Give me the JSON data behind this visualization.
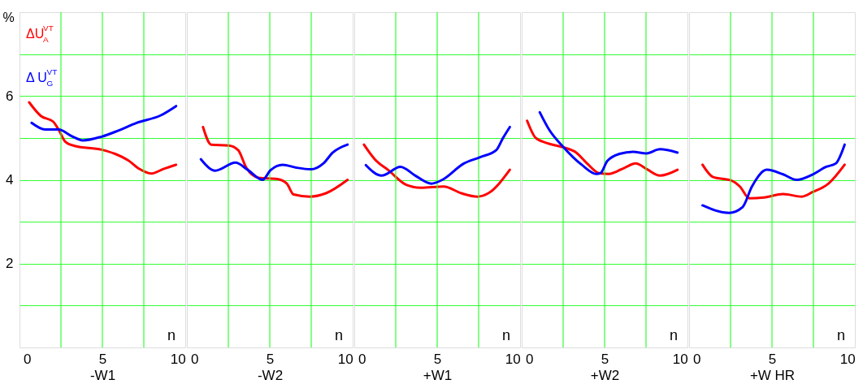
{
  "chart_data": [
    {
      "type": "line",
      "xlabel": "-W1",
      "ylabel": "%",
      "legend": "top left",
      "grid": "y",
      "annotations": [
        "n"
      ],
      "ref_lines": [
        {
          "axis": "x",
          "value": 2.25,
          "color": "#33ff33"
        },
        {
          "axis": "x",
          "value": 5,
          "color": "#33ff33"
        },
        {
          "axis": "x",
          "value": 7.75,
          "color": "#33ff33"
        }
      ],
      "xlim": [
        -0.5,
        10.5
      ],
      "ylim": [
        0,
        8
      ],
      "xticks": [
        0,
        5,
        10
      ],
      "yticks": [
        {
          "value": 1,
          "label": null
        },
        2,
        {
          "value": 3,
          "label": null
        },
        4,
        {
          "value": 5,
          "label": null
        },
        6,
        {
          "value": 7,
          "label": null
        }
      ],
      "series": [
        {
          "name": "ΔU$^{VT}$$_{A}$",
          "color": "#ff0000",
          "x": [
            0.14,
            0.93,
            1.73,
            2.09,
            2.54,
            3.16,
            4.95,
            5.84,
            6.73,
            7.45,
            8.25,
            9.05,
            9.89
          ],
          "values": [
            5.85,
            5.52,
            5.39,
            5.2,
            4.91,
            4.81,
            4.72,
            4.62,
            4.46,
            4.26,
            4.15,
            4.26,
            4.36
          ]
        },
        {
          "name": "Δ U$^{VT}$$_{G}$",
          "color": "#0000ff",
          "x": [
            0.3,
            1.2,
            2.09,
            2.98,
            3.7,
            4.95,
            6.02,
            7.27,
            8.88,
            9.89
          ],
          "values": [
            5.36,
            5.2,
            5.2,
            5.04,
            4.94,
            5.03,
            5.17,
            5.36,
            5.54,
            5.76
          ]
        }
      ]
    },
    {
      "type": "line",
      "xlabel": "-W2",
      "grid": "y",
      "tick_labels": "x",
      "annotations": [
        "n"
      ],
      "ref_lines": [
        {
          "axis": "x",
          "value": 2.25,
          "color": "#33ff33"
        },
        {
          "axis": "x",
          "value": 5,
          "color": "#33ff33"
        },
        {
          "axis": "x",
          "value": 7.75,
          "color": "#33ff33"
        }
      ],
      "xlim": [
        -0.5,
        10.5
      ],
      "ylim": [
        0,
        8
      ],
      "xticks": [
        0,
        5,
        10
      ],
      "yticks": [
        {
          "value": 1,
          "label": null
        },
        2,
        {
          "value": 3,
          "label": null
        },
        4,
        {
          "value": 5,
          "label": null
        },
        6,
        {
          "value": 7,
          "label": null
        }
      ],
      "series": [
        {
          "color": "#ff0000",
          "x": [
            0.57,
            1.11,
            2.28,
            2.9,
            3.44,
            4.25,
            5.5,
            6.13,
            6.58,
            7.65,
            8.73,
            10.16
          ],
          "values": [
            5.26,
            4.84,
            4.82,
            4.71,
            4.29,
            4.05,
            4.02,
            3.91,
            3.65,
            3.6,
            3.68,
            4.0
          ]
        },
        {
          "color": "#0000ff",
          "x": [
            0.43,
            1.38,
            2.72,
            3.53,
            4.52,
            5.05,
            5.86,
            6.76,
            7.74,
            8.55,
            9.18,
            10.16
          ],
          "values": [
            4.49,
            4.22,
            4.41,
            4.24,
            4.0,
            4.23,
            4.36,
            4.29,
            4.25,
            4.39,
            4.65,
            4.84
          ]
        }
      ]
    },
    {
      "type": "line",
      "xlabel": "+W1",
      "grid": "y",
      "tick_labels": "x",
      "annotations": [
        "n"
      ],
      "ref_lines": [
        {
          "axis": "x",
          "value": 2.25,
          "color": "#33ff33"
        },
        {
          "axis": "x",
          "value": 5,
          "color": "#33ff33"
        },
        {
          "axis": "x",
          "value": 7.75,
          "color": "#33ff33"
        }
      ],
      "xlim": [
        -0.5,
        10.5
      ],
      "ylim": [
        0,
        8
      ],
      "xticks": [
        0,
        5,
        10
      ],
      "yticks": [
        {
          "value": 1,
          "label": null
        },
        2,
        {
          "value": 3,
          "label": null
        },
        4,
        {
          "value": 5,
          "label": null
        },
        6,
        {
          "value": 7,
          "label": null
        }
      ],
      "series": [
        {
          "color": "#ff0000",
          "x": [
            0.14,
            0.86,
            1.76,
            3.01,
            3.91,
            5.43,
            6.6,
            7.67,
            8.39,
            9.82
          ],
          "values": [
            4.84,
            4.49,
            4.23,
            3.87,
            3.81,
            3.84,
            3.68,
            3.6,
            3.68,
            4.24
          ]
        },
        {
          "color": "#0000ff",
          "x": [
            0.27,
            1.31,
            2.56,
            3.55,
            4.62,
            5.34,
            6.77,
            7.85,
            8.92,
            9.37,
            9.82
          ],
          "values": [
            4.35,
            4.1,
            4.31,
            4.1,
            3.91,
            4.0,
            4.39,
            4.54,
            4.71,
            5.0,
            5.26
          ]
        }
      ]
    },
    {
      "type": "line",
      "xlabel": "+W2",
      "grid": "y",
      "tick_labels": "x",
      "annotations": [
        "n"
      ],
      "ref_lines": [
        {
          "axis": "x",
          "value": 2.25,
          "color": "#33ff33"
        },
        {
          "axis": "x",
          "value": 5,
          "color": "#33ff33"
        },
        {
          "axis": "x",
          "value": 7.75,
          "color": "#33ff33"
        }
      ],
      "xlim": [
        -0.5,
        10.5
      ],
      "ylim": [
        0,
        8
      ],
      "xticks": [
        0,
        5,
        10
      ],
      "yticks": [
        {
          "value": 1,
          "label": null
        },
        2,
        {
          "value": 3,
          "label": null
        },
        4,
        {
          "value": 5,
          "label": null
        },
        6,
        {
          "value": 7,
          "label": null
        }
      ],
      "series": [
        {
          "color": "#ff0000",
          "x": [
            -0.14,
            0.43,
            1.15,
            2.22,
            3.12,
            3.84,
            4.64,
            5.27,
            6.34,
            7.06,
            7.78,
            8.67,
            9.84
          ],
          "values": [
            5.41,
            5.0,
            4.88,
            4.78,
            4.65,
            4.39,
            4.16,
            4.14,
            4.29,
            4.39,
            4.26,
            4.1,
            4.24
          ]
        },
        {
          "color": "#0000ff",
          "x": [
            0.7,
            1.33,
            2.22,
            3.48,
            4.46,
            4.73,
            5.18,
            5.99,
            6.88,
            7.78,
            8.67,
            9.84
          ],
          "values": [
            5.61,
            5.19,
            4.8,
            4.36,
            4.14,
            4.16,
            4.45,
            4.62,
            4.67,
            4.63,
            4.73,
            4.65
          ]
        }
      ]
    },
    {
      "type": "line",
      "xlabel": "+W HR",
      "grid": "y",
      "tick_labels": "x",
      "annotations": [
        "n"
      ],
      "ref_lines": [
        {
          "axis": "x",
          "value": 2.25,
          "color": "#33ff33"
        },
        {
          "axis": "x",
          "value": 5,
          "color": "#33ff33"
        },
        {
          "axis": "x",
          "value": 7.75,
          "color": "#33ff33"
        }
      ],
      "xlim": [
        -0.5,
        10.5
      ],
      "ylim": [
        0,
        8
      ],
      "xticks": [
        0,
        5,
        10
      ],
      "yticks": [
        {
          "value": 1,
          "label": null
        },
        2,
        {
          "value": 3,
          "label": null
        },
        4,
        {
          "value": 5,
          "label": null
        },
        6,
        {
          "value": 7,
          "label": null
        }
      ],
      "series": [
        {
          "color": "#ff0000",
          "x": [
            0.39,
            1.07,
            2.33,
            2.87,
            3.49,
            4.48,
            5.74,
            6.99,
            7.71,
            8.78,
            9.82
          ],
          "values": [
            4.36,
            4.07,
            3.98,
            3.84,
            3.56,
            3.58,
            3.66,
            3.6,
            3.71,
            3.92,
            4.36
          ]
        },
        {
          "color": "#0000ff",
          "x": [
            0.39,
            2.15,
            3.05,
            3.67,
            4.66,
            5.74,
            6.63,
            7.71,
            8.6,
            9.23,
            9.82
          ],
          "values": [
            3.39,
            3.21,
            3.35,
            3.84,
            4.24,
            4.13,
            4.0,
            4.13,
            4.31,
            4.39,
            4.84
          ]
        }
      ]
    }
  ]
}
